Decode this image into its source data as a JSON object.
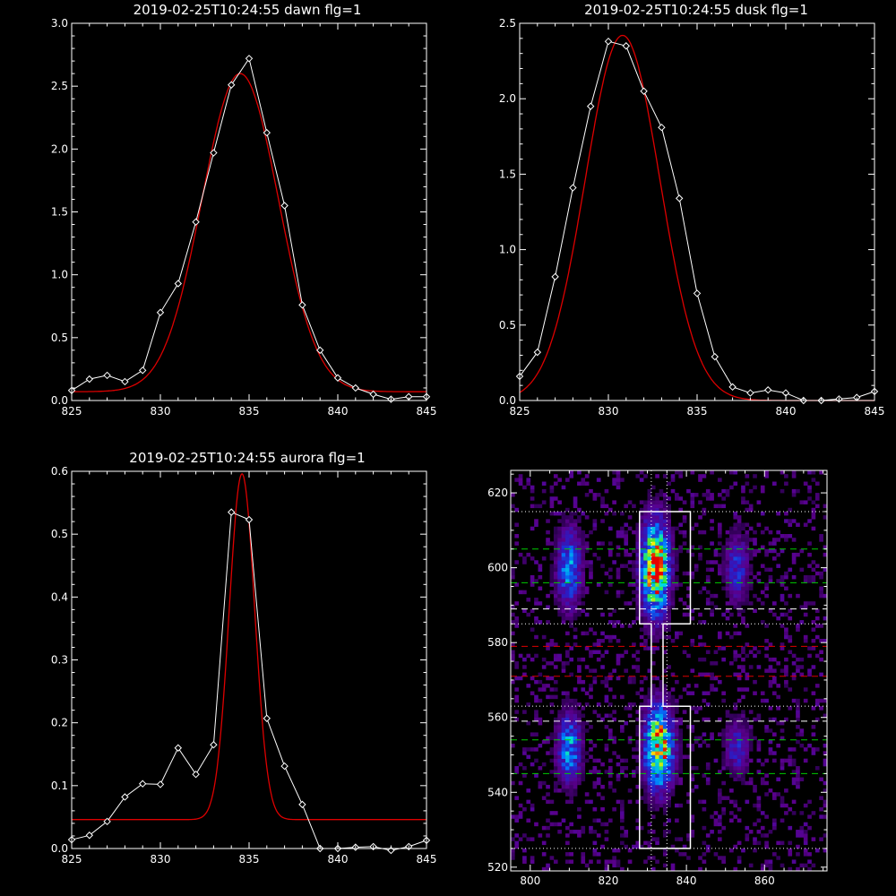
{
  "colors": {
    "background": "#000000",
    "axes": "#ffffff",
    "fit": "#dd0000",
    "data": "#ffffff"
  },
  "chart_data": [
    {
      "type": "line",
      "title": "2019-02-25T10:24:55 dawn flg=1",
      "xlim": [
        825,
        845
      ],
      "ylim": [
        0,
        3
      ],
      "xticks": [
        "825",
        "830",
        "835",
        "840",
        "845"
      ],
      "yticks": [
        "0.0",
        "0.5",
        "1.0",
        "1.5",
        "2.0",
        "2.5",
        "3.0"
      ],
      "series": [
        {
          "role": "measured",
          "marker": "diamond",
          "x": [
            825,
            826,
            827,
            828,
            829,
            830,
            831,
            832,
            833,
            834,
            835,
            836,
            837,
            838,
            839,
            840,
            841,
            842,
            843,
            844,
            845
          ],
          "y": [
            0.08,
            0.17,
            0.2,
            0.15,
            0.24,
            0.7,
            0.93,
            1.42,
            1.97,
            2.51,
            2.72,
            2.13,
            1.55,
            0.76,
            0.4,
            0.18,
            0.1,
            0.05,
            0.01,
            0.03,
            0.03
          ]
        },
        {
          "role": "fit",
          "kind": "gaussian",
          "amplitude": 2.53,
          "center": 834.5,
          "sigma": 2.15,
          "offset": 0.07
        }
      ]
    },
    {
      "type": "line",
      "title": "2019-02-25T10:24:55 dusk flg=1",
      "xlim": [
        825,
        845
      ],
      "ylim": [
        0,
        2.5
      ],
      "xticks": [
        "825",
        "830",
        "835",
        "840",
        "845"
      ],
      "yticks": [
        "0.0",
        "0.5",
        "1.0",
        "1.5",
        "2.0",
        "2.5"
      ],
      "series": [
        {
          "role": "measured",
          "marker": "diamond",
          "x": [
            825,
            826,
            827,
            828,
            829,
            830,
            831,
            832,
            833,
            834,
            835,
            836,
            837,
            838,
            839,
            840,
            841,
            842,
            843,
            844,
            845
          ],
          "y": [
            0.16,
            0.32,
            0.82,
            1.41,
            1.95,
            2.38,
            2.35,
            2.05,
            1.81,
            1.34,
            0.71,
            0.29,
            0.09,
            0.05,
            0.07,
            0.05,
            0.0,
            0.0,
            0.01,
            0.02,
            0.06
          ]
        },
        {
          "role": "fit",
          "kind": "gaussian",
          "amplitude": 2.42,
          "center": 830.8,
          "sigma": 2.1,
          "offset": 0.0
        }
      ]
    },
    {
      "type": "line",
      "title": "2019-02-25T10:24:55 aurora flg=1",
      "xlim": [
        825,
        845
      ],
      "ylim": [
        0,
        0.6
      ],
      "xticks": [
        "825",
        "830",
        "835",
        "840",
        "845"
      ],
      "yticks": [
        "0.0",
        "0.1",
        "0.2",
        "0.3",
        "0.4",
        "0.5",
        "0.6"
      ],
      "series": [
        {
          "role": "measured",
          "marker": "diamond",
          "x": [
            825,
            826,
            827,
            828,
            829,
            830,
            831,
            832,
            833,
            834,
            835,
            836,
            837,
            838,
            839,
            840,
            841,
            842,
            843,
            844,
            845
          ],
          "y": [
            0.014,
            0.021,
            0.043,
            0.082,
            0.103,
            0.102,
            0.16,
            0.118,
            0.165,
            0.535,
            0.523,
            0.207,
            0.131,
            0.07,
            0.0,
            0.0,
            0.002,
            0.003,
            -0.003,
            0.003,
            0.013
          ]
        },
        {
          "role": "fit",
          "kind": "gaussian",
          "amplitude": 0.55,
          "center": 834.6,
          "sigma": 0.72,
          "offset": 0.046
        }
      ]
    },
    {
      "type": "heatmap",
      "xlim": [
        795,
        876
      ],
      "ylim": [
        519,
        626
      ],
      "xticks": [
        "800",
        "820",
        "840",
        "860"
      ],
      "yticks": [
        "520",
        "540",
        "560",
        "580",
        "600",
        "620"
      ],
      "colormap": "rainbow",
      "blobs": [
        {
          "x": 810,
          "y": 600,
          "sx": 2.0,
          "sy": 7.0,
          "amp": 0.45
        },
        {
          "x": 810,
          "y": 552,
          "sx": 2.0,
          "sy": 6.0,
          "amp": 0.48
        },
        {
          "x": 832,
          "y": 600,
          "sx": 2.3,
          "sy": 8.0,
          "amp": 1.0
        },
        {
          "x": 833,
          "y": 552,
          "sx": 2.3,
          "sy": 7.0,
          "amp": 0.95
        },
        {
          "x": 853,
          "y": 600,
          "sx": 2.0,
          "sy": 6.0,
          "amp": 0.28
        },
        {
          "x": 853,
          "y": 552,
          "sx": 2.0,
          "sy": 5.0,
          "amp": 0.26
        }
      ],
      "hlines": [
        {
          "y": 615,
          "style": "dotted",
          "color": "#ffffff"
        },
        {
          "y": 605,
          "style": "dashed",
          "color": "#00cc00"
        },
        {
          "y": 596,
          "style": "dashed",
          "color": "#00cc00"
        },
        {
          "y": 589,
          "style": "dashed",
          "color": "#ffffff"
        },
        {
          "y": 585,
          "style": "dotted",
          "color": "#ffffff"
        },
        {
          "y": 579,
          "style": "dashed",
          "color": "#dd0000"
        },
        {
          "y": 571,
          "style": "dashed",
          "color": "#dd0000"
        },
        {
          "y": 563,
          "style": "dotted",
          "color": "#ffffff"
        },
        {
          "y": 559,
          "style": "dashed",
          "color": "#ffffff"
        },
        {
          "y": 554,
          "style": "dashed",
          "color": "#00cc00"
        },
        {
          "y": 545,
          "style": "dashed",
          "color": "#00cc00"
        },
        {
          "y": 525,
          "style": "dotted",
          "color": "#ffffff"
        }
      ],
      "vlines": [
        {
          "x": 831,
          "style": "dotted",
          "color": "#ffffff"
        },
        {
          "x": 835,
          "style": "dotted",
          "color": "#ffffff"
        }
      ],
      "outline": [
        [
          828,
          615
        ],
        [
          841,
          615
        ],
        [
          841,
          585
        ],
        [
          834,
          585
        ],
        [
          834,
          563
        ],
        [
          841,
          563
        ],
        [
          841,
          525
        ],
        [
          828,
          525
        ],
        [
          828,
          563
        ],
        [
          831,
          563
        ],
        [
          831,
          585
        ],
        [
          828,
          585
        ]
      ]
    }
  ]
}
